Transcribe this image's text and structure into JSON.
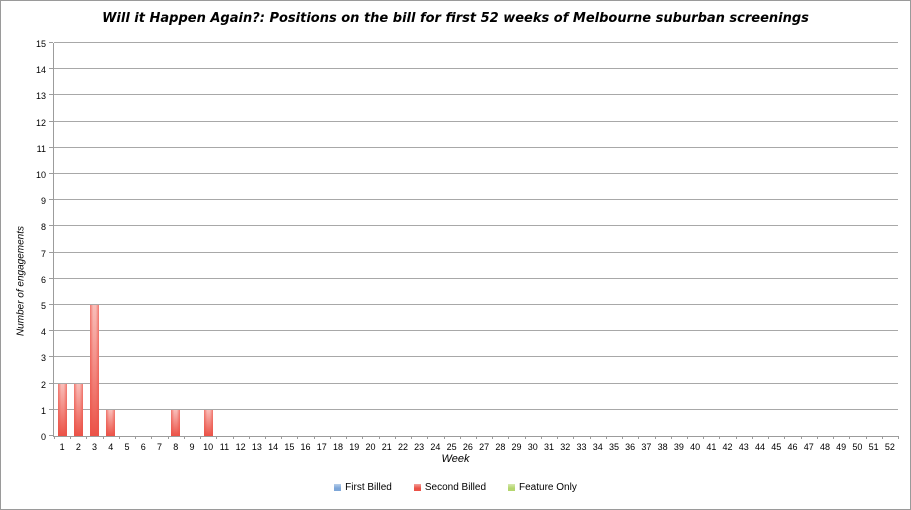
{
  "chart_data": {
    "type": "bar",
    "title": "Will it Happen Again?: Positions on the bill for first 52 weeks of Melbourne suburban screenings",
    "xlabel": "Week",
    "ylabel": "Number of engagements",
    "ylim": [
      0,
      15
    ],
    "y_tick_step": 1,
    "grid": "horizontal",
    "legend_position": "bottom",
    "categories": [
      1,
      2,
      3,
      4,
      5,
      6,
      7,
      8,
      9,
      10,
      11,
      12,
      13,
      14,
      15,
      16,
      17,
      18,
      19,
      20,
      21,
      22,
      23,
      24,
      25,
      26,
      27,
      28,
      29,
      30,
      31,
      32,
      33,
      34,
      35,
      36,
      37,
      38,
      39,
      40,
      41,
      42,
      43,
      44,
      45,
      46,
      47,
      48,
      49,
      50,
      51,
      52
    ],
    "series": [
      {
        "name": "First Billed",
        "color": "#7da6d8",
        "color_light": "#c6d9ef",
        "values": [
          0,
          0,
          0,
          0,
          0,
          0,
          0,
          0,
          0,
          0,
          0,
          0,
          0,
          0,
          0,
          0,
          0,
          0,
          0,
          0,
          0,
          0,
          0,
          0,
          0,
          0,
          0,
          0,
          0,
          0,
          0,
          0,
          0,
          0,
          0,
          0,
          0,
          0,
          0,
          0,
          0,
          0,
          0,
          0,
          0,
          0,
          0,
          0,
          0,
          0,
          0,
          0
        ]
      },
      {
        "name": "Second Billed",
        "color": "#eb5247",
        "color_light": "#f9beb9",
        "values": [
          2,
          2,
          5,
          1,
          0,
          0,
          0,
          1,
          0,
          1,
          0,
          0,
          0,
          0,
          0,
          0,
          0,
          0,
          0,
          0,
          0,
          0,
          0,
          0,
          0,
          0,
          0,
          0,
          0,
          0,
          0,
          0,
          0,
          0,
          0,
          0,
          0,
          0,
          0,
          0,
          0,
          0,
          0,
          0,
          0,
          0,
          0,
          0,
          0,
          0,
          0,
          0
        ]
      },
      {
        "name": "Feature Only",
        "color": "#b4d66e",
        "color_light": "#dfeebc",
        "values": [
          0,
          0,
          0,
          0,
          0,
          0,
          0,
          0,
          0,
          0,
          0,
          0,
          0,
          0,
          0,
          0,
          0,
          0,
          0,
          0,
          0,
          0,
          0,
          0,
          0,
          0,
          0,
          0,
          0,
          0,
          0,
          0,
          0,
          0,
          0,
          0,
          0,
          0,
          0,
          0,
          0,
          0,
          0,
          0,
          0,
          0,
          0,
          0,
          0,
          0,
          0,
          0
        ]
      }
    ],
    "colors": {
      "gridline": "#a8a8a8",
      "axis": "#9c9c9c"
    }
  }
}
